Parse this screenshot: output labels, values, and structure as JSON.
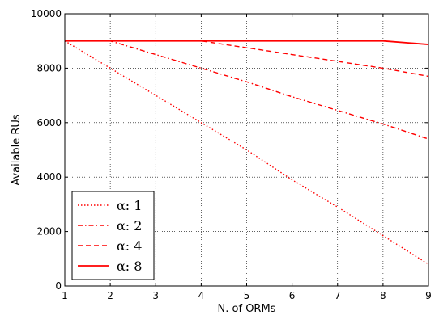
{
  "chart_data": {
    "type": "line",
    "xlabel": "N. of ORMs",
    "ylabel": "Available RUs",
    "xlim": [
      1,
      9
    ],
    "ylim": [
      0,
      10000
    ],
    "xticks": [
      "1",
      "2",
      "3",
      "4",
      "5",
      "6",
      "7",
      "8",
      "9"
    ],
    "yticks": [
      "0",
      "2000",
      "4000",
      "6000",
      "8000",
      "10000"
    ],
    "grid": true,
    "legend_position": "lower-left",
    "color": "#ff0000",
    "series": [
      {
        "name": "α: 1",
        "style": "dotted",
        "x": [
          1,
          2,
          3,
          4,
          5,
          6,
          7,
          8,
          9
        ],
        "y": [
          9000,
          8000,
          7000,
          6000,
          5000,
          3900,
          2900,
          1850,
          800
        ]
      },
      {
        "name": "α: 2",
        "style": "dashdot",
        "x": [
          1,
          2,
          3,
          4,
          5,
          6,
          7,
          8,
          9
        ],
        "y": [
          9000,
          9000,
          8500,
          8000,
          7500,
          6950,
          6450,
          5950,
          5400
        ]
      },
      {
        "name": "α: 4",
        "style": "dashed",
        "x": [
          1,
          2,
          3,
          4,
          5,
          6,
          7,
          8,
          9
        ],
        "y": [
          9000,
          9000,
          9000,
          9000,
          8750,
          8500,
          8250,
          8000,
          7700
        ]
      },
      {
        "name": "α: 8",
        "style": "solid",
        "x": [
          1,
          2,
          3,
          4,
          5,
          6,
          7,
          8,
          9
        ],
        "y": [
          9000,
          9000,
          9000,
          9000,
          9000,
          9000,
          9000,
          9000,
          8870
        ]
      }
    ]
  }
}
